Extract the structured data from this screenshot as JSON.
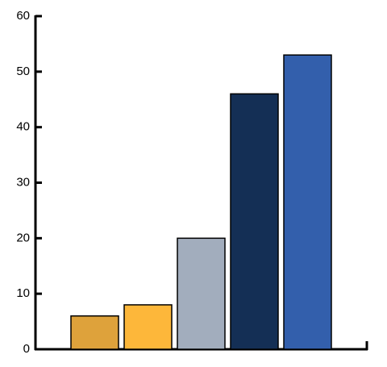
{
  "chart_data": {
    "type": "bar",
    "categories": [
      null,
      null,
      null,
      null,
      null
    ],
    "values": [
      6,
      8,
      20,
      46,
      53
    ],
    "colors": [
      "#dea23b",
      "#fdb73a",
      "#a2adbd",
      "#142f55",
      "#335fac"
    ],
    "ylim": [
      0,
      60
    ],
    "yticks": [
      0,
      10,
      20,
      30,
      40,
      50,
      60
    ],
    "grid": false
  }
}
